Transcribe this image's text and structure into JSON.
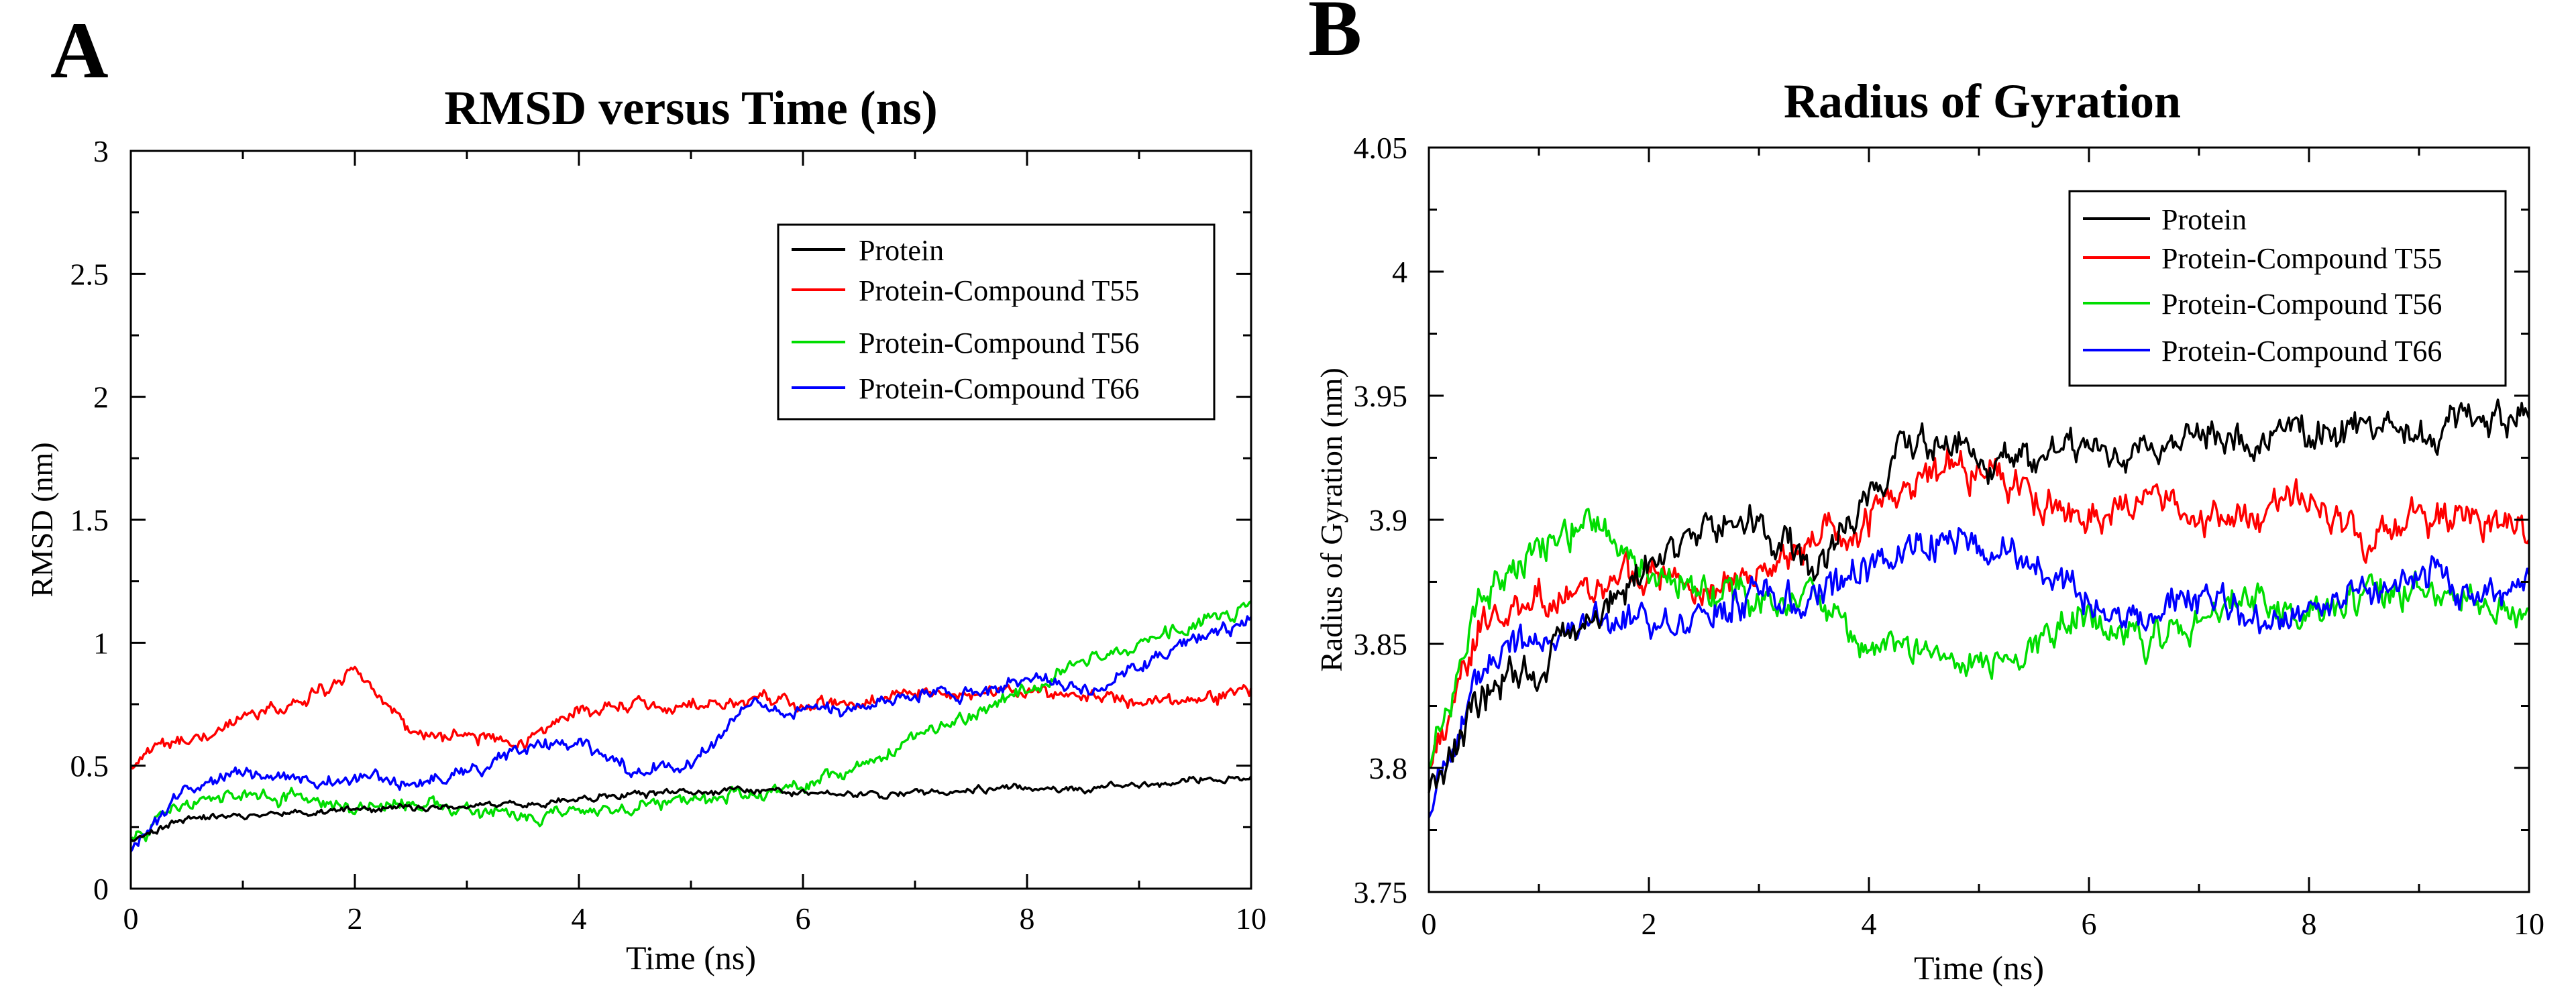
{
  "chart_data": [
    {
      "panel_letter": "A",
      "type": "line",
      "title": "RMSD versus Time (ns)",
      "xlabel": "Time (ns)",
      "ylabel": "RMSD (nm)",
      "xlim": [
        0,
        10
      ],
      "ylim": [
        0,
        3
      ],
      "xticks": [
        0,
        2,
        4,
        6,
        8,
        10
      ],
      "xtick_labels": [
        "0",
        "2",
        "4",
        "6",
        "8",
        "10"
      ],
      "yticks": [
        0,
        0.5,
        1,
        1.5,
        2,
        2.5,
        3
      ],
      "ytick_labels": [
        "0",
        "0.5",
        "1",
        "1.5",
        "2",
        "2.5",
        "3"
      ],
      "grid": false,
      "legend_position": "top-right",
      "x": [
        0,
        0.5,
        1,
        1.5,
        2,
        2.5,
        3,
        3.5,
        4,
        4.5,
        5,
        5.5,
        6,
        6.5,
        7,
        7.5,
        8,
        8.5,
        9,
        9.5,
        10
      ],
      "series": [
        {
          "name": "Protein",
          "color": "#000000",
          "values": [
            0.2,
            0.29,
            0.3,
            0.31,
            0.32,
            0.33,
            0.33,
            0.35,
            0.36,
            0.38,
            0.39,
            0.4,
            0.39,
            0.38,
            0.39,
            0.4,
            0.41,
            0.41,
            0.42,
            0.44,
            0.45
          ]
        },
        {
          "name": "Protein-Compound T55",
          "color": "#ff0000",
          "values": [
            0.5,
            0.62,
            0.68,
            0.75,
            0.9,
            0.64,
            0.62,
            0.6,
            0.72,
            0.74,
            0.76,
            0.76,
            0.75,
            0.76,
            0.8,
            0.8,
            0.82,
            0.78,
            0.76,
            0.77,
            0.8
          ]
        },
        {
          "name": "Protein-Compound T56",
          "color": "#00dd00",
          "values": [
            0.2,
            0.34,
            0.38,
            0.37,
            0.33,
            0.35,
            0.32,
            0.29,
            0.3,
            0.33,
            0.36,
            0.38,
            0.42,
            0.5,
            0.62,
            0.7,
            0.82,
            0.92,
            1.0,
            1.08,
            1.15
          ]
        },
        {
          "name": "Protein-Compound T66",
          "color": "#0000ff",
          "values": [
            0.15,
            0.4,
            0.47,
            0.43,
            0.44,
            0.43,
            0.48,
            0.56,
            0.6,
            0.48,
            0.5,
            0.75,
            0.72,
            0.72,
            0.8,
            0.78,
            0.86,
            0.8,
            0.9,
            1.02,
            1.08
          ]
        }
      ]
    },
    {
      "panel_letter": "B",
      "type": "line",
      "title": "Radius of Gyration",
      "xlabel": "Time (ns)",
      "ylabel": "Radius of Gyration (nm)",
      "xlim": [
        0,
        10
      ],
      "ylim": [
        3.75,
        4.05
      ],
      "xticks": [
        0,
        2,
        4,
        6,
        8,
        10
      ],
      "xtick_labels": [
        "0",
        "2",
        "4",
        "6",
        "8",
        "10"
      ],
      "yticks": [
        3.75,
        3.8,
        3.85,
        3.9,
        3.95,
        4.0,
        4.05
      ],
      "ytick_labels": [
        "3.75",
        "3.8",
        "3.85",
        "3.9",
        "3.95",
        "4",
        "4.05"
      ],
      "grid": false,
      "legend_position": "top-right",
      "x": [
        0,
        0.5,
        1,
        1.5,
        2,
        2.5,
        3,
        3.5,
        4,
        4.5,
        5,
        5.5,
        6,
        6.5,
        7,
        7.5,
        8,
        8.5,
        9,
        9.5,
        10
      ],
      "series": [
        {
          "name": "Protein",
          "color": "#000000",
          "values": [
            3.79,
            3.83,
            3.84,
            3.86,
            3.88,
            3.9,
            3.9,
            3.88,
            3.91,
            3.935,
            3.925,
            3.93,
            3.93,
            3.925,
            3.935,
            3.93,
            3.935,
            3.94,
            3.935,
            3.94,
            3.94
          ]
        },
        {
          "name": "Protein-Compound T55",
          "color": "#ff0000",
          "values": [
            3.8,
            3.86,
            3.87,
            3.87,
            3.88,
            3.87,
            3.88,
            3.89,
            3.9,
            3.92,
            3.92,
            3.91,
            3.9,
            3.91,
            3.9,
            3.9,
            3.91,
            3.89,
            3.9,
            3.9,
            3.895
          ]
        },
        {
          "name": "Protein-Compound T56",
          "color": "#00dd00",
          "values": [
            3.8,
            3.87,
            3.89,
            3.9,
            3.88,
            3.87,
            3.87,
            3.87,
            3.85,
            3.85,
            3.84,
            3.85,
            3.86,
            3.85,
            3.86,
            3.87,
            3.86,
            3.87,
            3.87,
            3.87,
            3.86
          ]
        },
        {
          "name": "Protein-Compound T66",
          "color": "#0000ff",
          "values": [
            3.78,
            3.84,
            3.85,
            3.86,
            3.86,
            3.86,
            3.87,
            3.87,
            3.88,
            3.89,
            3.89,
            3.88,
            3.87,
            3.86,
            3.87,
            3.86,
            3.86,
            3.87,
            3.88,
            3.87,
            3.88
          ]
        }
      ]
    }
  ]
}
